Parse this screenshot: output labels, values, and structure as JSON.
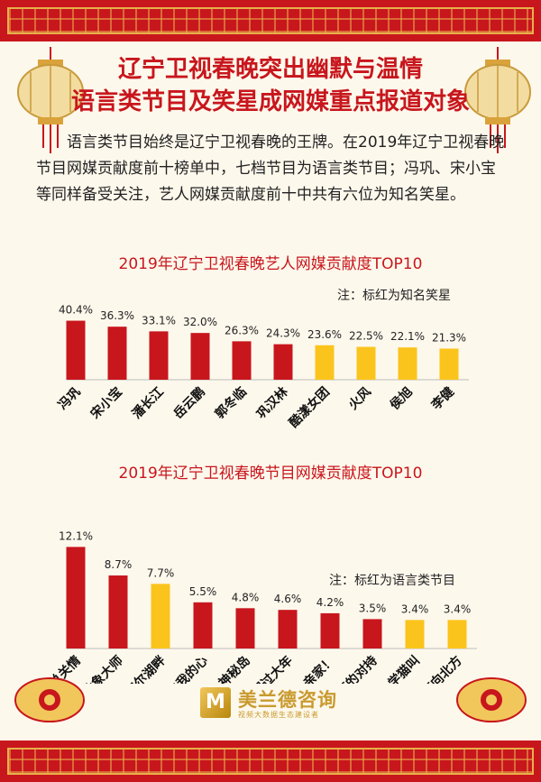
{
  "title_line1": "辽宁卫视春晚突出幽默与温情",
  "title_line2": "语言类节目及笑星成网媒重点报道对象",
  "intro": "语言类节目始终是辽宁卫视春晚的王牌。在2019年辽宁卫视春晚节目网媒贡献度前十榜单中，七档节目为语言类节目；冯巩、宋小宝等同样备受关注，艺人网媒贡献度前十中共有六位为知名笑星。",
  "colors": {
    "highlight": "#c8161d",
    "normal": "#fbc41c",
    "title": "#c8161d"
  },
  "logo": {
    "name": "美兰德咨询",
    "sub": "视频大数据生态建设者"
  },
  "chart_data": [
    {
      "type": "bar",
      "title": "2019年辽宁卫视春晚艺人网媒贡献度TOP10",
      "note": "注：标红为知名笑星",
      "categories": [
        "冯巩",
        "宋小宝",
        "潘长江",
        "岳云鹏",
        "郭冬临",
        "巩汉林",
        "酷漾女团",
        "火风",
        "侯旭",
        "李健"
      ],
      "values": [
        40.4,
        36.3,
        33.1,
        32.0,
        26.3,
        24.3,
        23.6,
        22.5,
        22.1,
        21.3
      ],
      "labels": [
        "40.4%",
        "36.3%",
        "33.1%",
        "32.0%",
        "26.3%",
        "24.3%",
        "23.6%",
        "22.5%",
        "22.1%",
        "21.3%"
      ],
      "highlight": [
        true,
        true,
        true,
        true,
        true,
        true,
        false,
        false,
        false,
        false
      ],
      "ylim": [
        0,
        50
      ]
    },
    {
      "type": "bar",
      "title": "2019年辽宁卫视春晚节目网媒贡献度TOP10",
      "note": "注：标红为语言类节目",
      "categories": [
        "乡音总关情",
        "抽象大师",
        "贝加尔湖畔",
        "明明白白我的心",
        "神秘岛",
        "团团圆圆过大年",
        "上坑吧！亲家！",
        "无声的对持",
        "学猫叫",
        "今夜向北方"
      ],
      "values": [
        12.1,
        8.7,
        7.7,
        5.5,
        4.8,
        4.6,
        4.2,
        3.5,
        3.4,
        3.4
      ],
      "labels": [
        "12.1%",
        "8.7%",
        "7.7%",
        "5.5%",
        "4.8%",
        "4.6%",
        "4.2%",
        "3.5%",
        "3.4%",
        "3.4%"
      ],
      "highlight": [
        true,
        true,
        false,
        true,
        true,
        true,
        true,
        true,
        false,
        false
      ],
      "ylim": [
        0,
        13
      ]
    }
  ]
}
